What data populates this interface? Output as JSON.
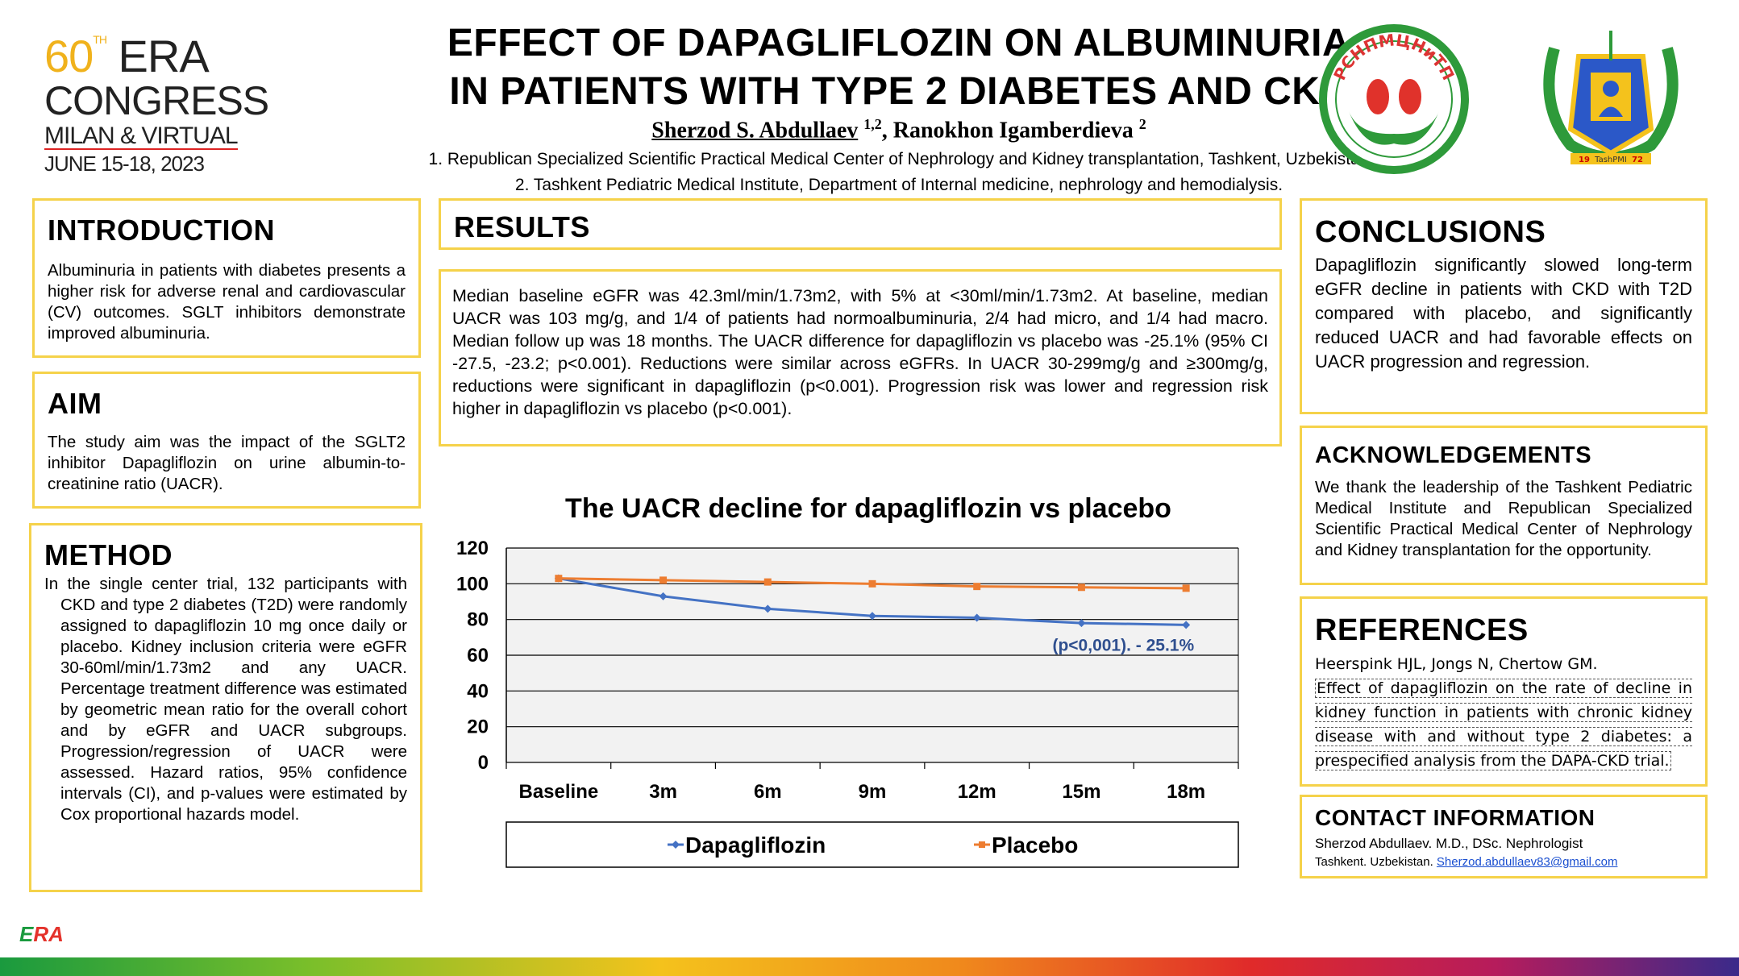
{
  "header": {
    "congress": {
      "number": "60",
      "suffix": "TH",
      "word1": "ERA",
      "word2": "CONGRESS",
      "line3": "MILAN & VIRTUAL",
      "line4": "JUNE 15-18, 2023"
    },
    "title_lines": [
      "EFFECT OF DAPAGLIFLOZIN ON ALBUMINURIA",
      "IN PATIENTS WITH TYPE 2 DIABETES AND CKD"
    ],
    "author1": "Sherzod S. Abdullaev",
    "author1_sup": "1,2",
    "author2": "Ranokhon Igamberdieva",
    "author2_sup": "2",
    "affiliation1": "1. Republican Specialized Scientific Practical Medical Center of Nephrology and Kidney transplantation, Tashkent, Uzbekistan",
    "affiliation2": "2. Tashkent Pediatric Medical Institute, Department of Internal medicine, nephrology and hemodialysis.",
    "logo1_text": "РСНПМЦНиТП",
    "logo2_text": "TashPMI",
    "logo2_year_left": "19",
    "logo2_year_right": "72"
  },
  "introduction": {
    "heading": "INTRODUCTION",
    "text": "Albuminuria in patients with diabetes presents a higher risk for adverse renal and cardiovascular (CV) outcomes. SGLT inhibitors demonstrate improved albuminuria."
  },
  "aim": {
    "heading": "AIM",
    "text": "The study aim was the impact of the SGLT2 inhibitor Dapagliflozin on urine albumin-to-creatinine ratio (UACR)."
  },
  "method": {
    "heading": "METHOD",
    "text": "In the single center trial, 132 participants with CKD and type 2 diabetes (T2D) were randomly assigned to dapagliflozin 10 mg once daily or placebo. Kidney inclusion criteria were eGFR 30-60ml/min/1.73m2 and any UACR. Percentage treatment difference was estimated by geometric mean ratio for the overall cohort and by eGFR and UACR subgroups. Progression/regression of UACR were assessed. Hazard ratios, 95% confidence intervals (CI), and p-values were estimated by Cox proportional hazards model."
  },
  "results": {
    "heading": "RESULTS",
    "text": "Median baseline eGFR was 42.3ml/min/1.73m2, with 5% at <30ml/min/1.73m2. At baseline, median UACR was 103 mg/g, and 1/4 of patients had normoalbuminuria, 2/4 had micro, and 1/4 had macro. Median follow up was 18 months. The UACR difference for dapagliflozin vs placebo was -25.1% (95% CI -27.5, -23.2; p<0.001). Reductions were similar across eGFRs. In UACR 30-299mg/g and ≥300mg/g, reductions were significant in dapagliflozin (p<0.001). Progression risk was lower and regression risk higher in dapagliflozin vs placebo (p<0.001)."
  },
  "conclusions": {
    "heading": "CONCLUSIONS",
    "text": "Dapagliflozin significantly slowed long-term eGFR decline in patients with CKD with T2D compared with placebo, and significantly reduced UACR and had favorable effects on UACR progression and regression."
  },
  "acknowledgements": {
    "heading": "ACKNOWLEDGEMENTS",
    "text": "We thank the leadership of the Tashkent Pediatric Medical Institute and Republican Specialized Scientific Practical Medical Center of Nephrology and Kidney transplantation for the opportunity."
  },
  "references": {
    "heading": "REFERENCES",
    "authors": "Heerspink HJL, Jongs N, Chertow GM.",
    "title": "Effect of dapagliflozin on the rate of decline in kidney function in patients with chronic kidney disease with and without type 2 diabetes: a prespecified analysis from the DAPA-CKD trial."
  },
  "contact": {
    "heading": "CONTACT INFORMATION",
    "line1": "Sherzod Abdullaev. M.D., DSc. Nephrologist",
    "line2_prefix": "Tashkent. Uzbekistan.",
    "email": "Sherzod.abdullaev83@gmail.com"
  },
  "footer": {
    "logo_letter": "E",
    "logo_text": "RA"
  },
  "chart_data": {
    "type": "line",
    "title": "The UACR decline for dapagliflozin vs placebo",
    "categories": [
      "Baseline",
      "3m",
      "6m",
      "9m",
      "12m",
      "15m",
      "18m"
    ],
    "series": [
      {
        "name": "Dapagliflozin",
        "color": "#4472c4",
        "values": [
          103,
          93,
          86,
          82,
          81,
          78,
          77
        ]
      },
      {
        "name": "Placebo",
        "color": "#ed7d31",
        "values": [
          103,
          102,
          101,
          100,
          98.5,
          98,
          97.5
        ]
      }
    ],
    "ylim": [
      0,
      120
    ],
    "yticks": [
      0,
      20,
      40,
      60,
      80,
      100,
      120
    ],
    "grid": true,
    "legend": "bottom",
    "annotation": "(p<0,001).  - 25.1%"
  }
}
